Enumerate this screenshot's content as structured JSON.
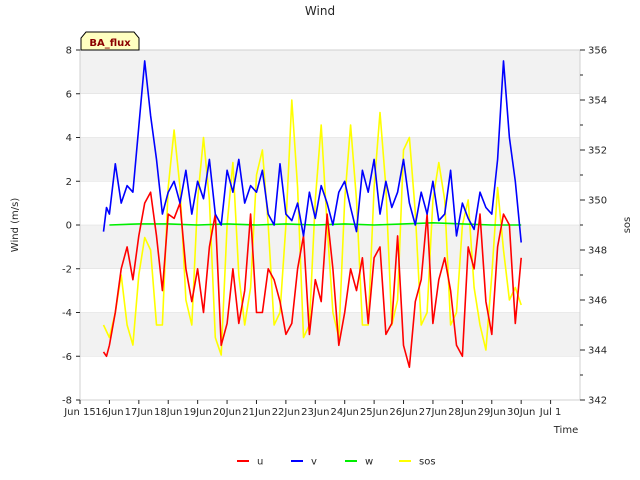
{
  "chart_data": {
    "type": "line",
    "title": "Wind",
    "badge": "BA_flux",
    "xlabel": "Time",
    "ylabel": "Wind (m/s)",
    "y2label": "sos",
    "xlim": [
      15,
      32
    ],
    "ylim": [
      -8,
      8
    ],
    "y2lim": [
      342,
      356
    ],
    "x_ticks": [
      {
        "value": 15,
        "label": "Jun 15"
      },
      {
        "value": 16,
        "label": "16Jun"
      },
      {
        "value": 17,
        "label": "17Jun"
      },
      {
        "value": 18,
        "label": "18Jun"
      },
      {
        "value": 19,
        "label": "19Jun"
      },
      {
        "value": 20,
        "label": "20Jun"
      },
      {
        "value": 21,
        "label": "21Jun"
      },
      {
        "value": 22,
        "label": "22Jun"
      },
      {
        "value": 23,
        "label": "23Jun"
      },
      {
        "value": 24,
        "label": "24Jun"
      },
      {
        "value": 25,
        "label": "25Jun"
      },
      {
        "value": 26,
        "label": "26Jun"
      },
      {
        "value": 27,
        "label": "27Jun"
      },
      {
        "value": 28,
        "label": "28Jun"
      },
      {
        "value": 29,
        "label": "29Jun"
      },
      {
        "value": 30,
        "label": "30Jun"
      },
      {
        "value": 31,
        "label": "Jul 1"
      }
    ],
    "y_ticks": [
      {
        "value": -8,
        "label": "-8"
      },
      {
        "value": -6,
        "label": "-6"
      },
      {
        "value": -4,
        "label": "-4"
      },
      {
        "value": -2,
        "label": "-2"
      },
      {
        "value": 0,
        "label": "0"
      },
      {
        "value": 2,
        "label": "2"
      },
      {
        "value": 4,
        "label": "4"
      },
      {
        "value": 6,
        "label": "6"
      },
      {
        "value": 8,
        "label": "8"
      }
    ],
    "y2_ticks": [
      {
        "value": 342,
        "label": "342"
      },
      {
        "value": 344,
        "label": "344"
      },
      {
        "value": 346,
        "label": "346"
      },
      {
        "value": 348,
        "label": "348"
      },
      {
        "value": 350,
        "label": "350"
      },
      {
        "value": 352,
        "label": "352"
      },
      {
        "value": 354,
        "label": "354"
      },
      {
        "value": 356,
        "label": "356"
      }
    ],
    "series": [
      {
        "name": "u",
        "color": "#ff0000",
        "axis": "left",
        "x": [
          15.8,
          15.9,
          16.0,
          16.2,
          16.4,
          16.6,
          16.8,
          17.0,
          17.2,
          17.4,
          17.6,
          17.8,
          18.0,
          18.2,
          18.4,
          18.6,
          18.8,
          19.0,
          19.2,
          19.4,
          19.6,
          19.8,
          20.0,
          20.2,
          20.4,
          20.6,
          20.8,
          21.0,
          21.2,
          21.4,
          21.6,
          21.8,
          22.0,
          22.2,
          22.4,
          22.6,
          22.8,
          23.0,
          23.2,
          23.4,
          23.6,
          23.8,
          24.0,
          24.2,
          24.4,
          24.6,
          24.8,
          25.0,
          25.2,
          25.4,
          25.6,
          25.8,
          26.0,
          26.2,
          26.4,
          26.6,
          26.8,
          27.0,
          27.2,
          27.4,
          27.6,
          27.8,
          28.0,
          28.2,
          28.4,
          28.6,
          28.8,
          29.0,
          29.2,
          29.4,
          29.6,
          29.8,
          30.0
        ],
        "values": [
          -5.8,
          -6.0,
          -5.5,
          -4.0,
          -2.0,
          -1.0,
          -2.5,
          -0.5,
          1.0,
          1.5,
          -0.5,
          -3.0,
          0.5,
          0.3,
          1.0,
          -2.0,
          -3.5,
          -2.0,
          -4.0,
          -1.0,
          0.5,
          -5.5,
          -4.5,
          -2.0,
          -4.5,
          -3.0,
          0.5,
          -4.0,
          -4.0,
          -2.0,
          -2.5,
          -3.5,
          -5.0,
          -4.5,
          -2.0,
          -0.5,
          -5.0,
          -2.5,
          -3.5,
          0.5,
          -2.0,
          -5.5,
          -4.0,
          -2.0,
          -3.0,
          -1.5,
          -4.5,
          -1.5,
          -1.0,
          -5.0,
          -4.5,
          -0.5,
          -5.5,
          -6.5,
          -3.5,
          -2.5,
          0.5,
          -4.5,
          -2.5,
          -1.5,
          -3.0,
          -5.5,
          -6.0,
          -1.0,
          -2.0,
          0.5,
          -3.5,
          -5.0,
          -1.0,
          0.5,
          0.0,
          -4.5,
          -1.5
        ]
      },
      {
        "name": "v",
        "color": "#0000ff",
        "axis": "left",
        "x": [
          15.8,
          15.9,
          16.0,
          16.2,
          16.4,
          16.6,
          16.8,
          17.0,
          17.2,
          17.4,
          17.6,
          17.8,
          18.0,
          18.2,
          18.4,
          18.6,
          18.8,
          19.0,
          19.2,
          19.4,
          19.6,
          19.8,
          20.0,
          20.2,
          20.4,
          20.6,
          20.8,
          21.0,
          21.2,
          21.4,
          21.6,
          21.8,
          22.0,
          22.2,
          22.4,
          22.6,
          22.8,
          23.0,
          23.2,
          23.4,
          23.6,
          23.8,
          24.0,
          24.2,
          24.4,
          24.6,
          24.8,
          25.0,
          25.2,
          25.4,
          25.6,
          25.8,
          26.0,
          26.2,
          26.4,
          26.6,
          26.8,
          27.0,
          27.2,
          27.4,
          27.6,
          27.8,
          28.0,
          28.2,
          28.4,
          28.6,
          28.8,
          29.0,
          29.2,
          29.4,
          29.6,
          29.8,
          30.0
        ],
        "values": [
          -0.3,
          0.8,
          0.5,
          2.8,
          1.0,
          1.8,
          1.5,
          4.5,
          7.5,
          5.0,
          3.0,
          0.5,
          1.5,
          2.0,
          1.0,
          2.5,
          0.5,
          2.0,
          1.2,
          3.0,
          0.5,
          0.0,
          2.5,
          1.5,
          3.0,
          1.0,
          1.8,
          1.5,
          2.5,
          0.5,
          0.0,
          2.8,
          0.5,
          0.2,
          1.0,
          -0.5,
          1.5,
          0.3,
          1.8,
          1.0,
          0.0,
          1.5,
          2.0,
          0.8,
          -0.3,
          2.5,
          1.5,
          3.0,
          0.5,
          2.0,
          0.8,
          1.5,
          3.0,
          1.0,
          0.0,
          1.5,
          0.5,
          2.0,
          0.2,
          0.5,
          2.5,
          -0.5,
          1.0,
          0.3,
          -0.2,
          1.5,
          0.8,
          0.5,
          3.0,
          7.5,
          4.0,
          2.0,
          -0.8
        ]
      },
      {
        "name": "w",
        "color": "#00ee00",
        "axis": "left",
        "x": [
          16.0,
          17.0,
          18.0,
          19.0,
          20.0,
          21.0,
          22.0,
          23.0,
          24.0,
          25.0,
          26.0,
          27.0,
          28.0,
          29.0,
          30.0
        ],
        "values": [
          0.0,
          0.05,
          0.05,
          0.0,
          0.05,
          0.0,
          0.05,
          0.0,
          0.05,
          0.0,
          0.05,
          0.1,
          0.05,
          0.0,
          0.0
        ]
      },
      {
        "name": "sos",
        "color": "#ffff00",
        "axis": "right",
        "x": [
          15.8,
          16.0,
          16.2,
          16.4,
          16.6,
          16.8,
          17.0,
          17.2,
          17.4,
          17.6,
          17.8,
          18.0,
          18.2,
          18.4,
          18.6,
          18.8,
          19.0,
          19.2,
          19.4,
          19.6,
          19.8,
          20.0,
          20.2,
          20.4,
          20.6,
          20.8,
          21.0,
          21.2,
          21.4,
          21.6,
          21.8,
          22.0,
          22.2,
          22.4,
          22.6,
          22.8,
          23.0,
          23.2,
          23.4,
          23.6,
          23.8,
          24.0,
          24.2,
          24.4,
          24.6,
          24.8,
          25.0,
          25.2,
          25.4,
          25.6,
          25.8,
          26.0,
          26.2,
          26.4,
          26.6,
          26.8,
          27.0,
          27.2,
          27.4,
          27.6,
          27.8,
          28.0,
          28.2,
          28.4,
          28.6,
          28.8,
          29.0,
          29.2,
          29.4,
          29.6,
          29.8,
          30.0
        ],
        "values": [
          345.0,
          344.5,
          345.5,
          347.0,
          345.0,
          344.2,
          347.0,
          348.5,
          348.0,
          345.0,
          345.0,
          350.5,
          352.8,
          350.5,
          346.0,
          345.0,
          350.0,
          352.5,
          350.0,
          344.5,
          343.8,
          349.0,
          351.5,
          347.0,
          345.0,
          346.5,
          351.0,
          352.0,
          349.0,
          345.0,
          345.5,
          349.0,
          354.0,
          350.5,
          344.5,
          345.0,
          350.0,
          353.0,
          349.0,
          345.5,
          344.5,
          350.0,
          353.0,
          350.0,
          345.0,
          345.0,
          350.5,
          353.5,
          350.5,
          345.0,
          346.0,
          352.0,
          352.5,
          349.5,
          345.0,
          345.5,
          350.0,
          351.5,
          350.0,
          345.0,
          345.5,
          349.0,
          350.0,
          346.5,
          345.0,
          344.0,
          347.0,
          350.5,
          348.0,
          346.0,
          346.5,
          345.8
        ]
      }
    ],
    "legend": {
      "position": "bottom-center",
      "entries": [
        "u",
        "v",
        "w",
        "sos"
      ]
    }
  },
  "colors": {
    "background": "#ffffff",
    "band": "#f2f2f2",
    "grid": "#dcdcdc",
    "badge_fill": "#ffffc0"
  }
}
